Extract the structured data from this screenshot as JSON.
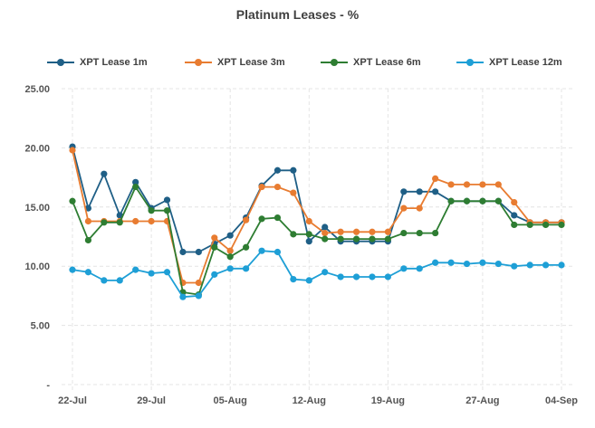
{
  "chart_data": {
    "type": "line",
    "title": "Platinum Leases - %",
    "xlabel": "",
    "ylabel": "",
    "ylim": [
      0,
      25
    ],
    "yticks": [
      "-",
      "5.00",
      "10.00",
      "15.00",
      "20.00",
      "25.00"
    ],
    "grid": true,
    "legend_position": "top",
    "x_tick_labels": [
      "22-Jul",
      "29-Jul",
      "05-Aug",
      "12-Aug",
      "19-Aug",
      "27-Aug",
      "04-Sep"
    ],
    "x": [
      "22-Jul",
      "23-Jul",
      "24-Jul",
      "25-Jul",
      "26-Jul",
      "29-Jul",
      "30-Jul",
      "31-Jul",
      "01-Aug",
      "02-Aug",
      "05-Aug",
      "06-Aug",
      "07-Aug",
      "08-Aug",
      "09-Aug",
      "12-Aug",
      "13-Aug",
      "14-Aug",
      "15-Aug",
      "16-Aug",
      "19-Aug",
      "20-Aug",
      "21-Aug",
      "22-Aug",
      "23-Aug",
      "26-Aug",
      "27-Aug",
      "28-Aug",
      "29-Aug",
      "30-Aug",
      "03-Sep",
      "04-Sep"
    ],
    "series": [
      {
        "name": "XPT Lease 1m",
        "color": "#1f5f86",
        "values": [
          20.1,
          14.9,
          17.8,
          14.3,
          17.1,
          14.9,
          15.6,
          11.2,
          11.2,
          11.9,
          12.6,
          14.1,
          16.8,
          18.1,
          18.1,
          12.1,
          13.3,
          12.1,
          12.1,
          12.1,
          12.1,
          16.3,
          16.3,
          16.3,
          15.5,
          15.5,
          15.5,
          15.5,
          14.3,
          13.7,
          13.7,
          13.7
        ]
      },
      {
        "name": "XPT Lease 3m",
        "color": "#e87c31",
        "values": [
          19.8,
          13.8,
          13.8,
          13.8,
          13.8,
          13.8,
          13.8,
          8.6,
          8.6,
          12.4,
          11.3,
          13.9,
          16.7,
          16.7,
          16.2,
          13.8,
          12.8,
          12.9,
          12.9,
          12.9,
          12.9,
          14.9,
          14.9,
          17.4,
          16.9,
          16.9,
          16.9,
          16.9,
          15.4,
          13.7,
          13.7,
          13.7
        ]
      },
      {
        "name": "XPT Lease 6m",
        "color": "#2e7d32",
        "values": [
          15.5,
          12.2,
          13.7,
          13.7,
          16.7,
          14.7,
          14.7,
          7.8,
          7.6,
          11.6,
          10.8,
          11.6,
          14.0,
          14.1,
          12.7,
          12.7,
          12.3,
          12.3,
          12.3,
          12.3,
          12.3,
          12.8,
          12.8,
          12.8,
          15.5,
          15.5,
          15.5,
          15.5,
          13.5,
          13.5,
          13.5,
          13.5
        ]
      },
      {
        "name": "XPT Lease 12m",
        "color": "#1e9fd6",
        "values": [
          9.7,
          9.5,
          8.8,
          8.8,
          9.7,
          9.4,
          9.5,
          7.4,
          7.5,
          9.3,
          9.8,
          9.8,
          11.3,
          11.2,
          8.9,
          8.8,
          9.5,
          9.1,
          9.1,
          9.1,
          9.1,
          9.8,
          9.8,
          10.3,
          10.3,
          10.2,
          10.3,
          10.2,
          10.0,
          10.1,
          10.1,
          10.1
        ]
      }
    ]
  }
}
